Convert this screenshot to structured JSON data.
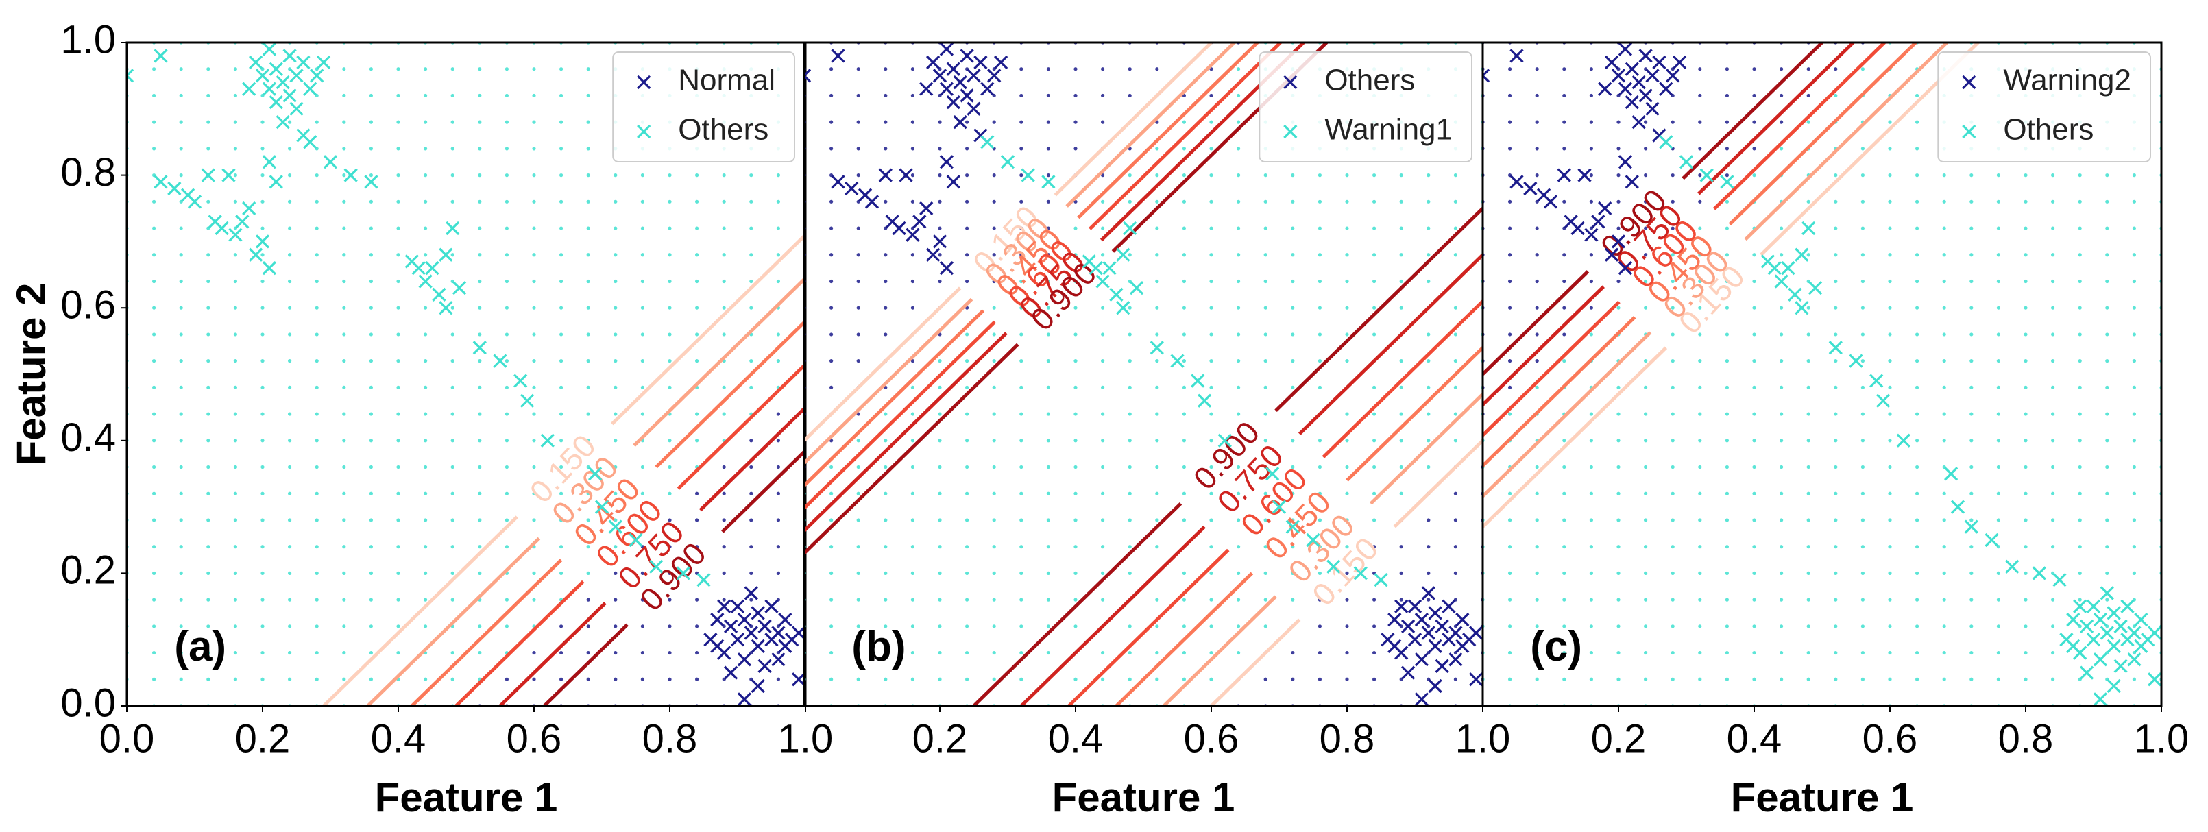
{
  "chart_data": [
    {
      "type": "scatter",
      "panel_label": "(a)",
      "xlabel": "Feature 1",
      "ylabel": "Feature 2",
      "xlim": [
        0,
        1
      ],
      "ylim": [
        0,
        1
      ],
      "xticks": [
        {
          "value": 0,
          "label": "0.0"
        },
        0.2,
        0.4,
        0.6,
        0.8,
        {
          "value": 1,
          "label": "1.0"
        }
      ],
      "yticks": [
        {
          "value": 0,
          "label": "0.0"
        },
        0.2,
        0.4,
        0.6,
        0.8,
        {
          "value": 1,
          "label": "1.0"
        }
      ],
      "legend": "upper right",
      "series": [
        {
          "name": "Normal",
          "color": "#1c1c8c",
          "x": [
            0.86,
            0.87,
            0.88,
            0.89,
            0.9,
            0.9,
            0.91,
            0.91,
            0.92,
            0.92,
            0.93,
            0.93,
            0.94,
            0.94,
            0.95,
            0.95,
            0.96,
            0.97,
            0.97,
            0.98,
            0.99,
            0.88,
            0.89,
            0.91,
            0.99,
            0.93,
            0.87,
            0.96
          ],
          "y": [
            0.1,
            0.13,
            0.08,
            0.12,
            0.15,
            0.1,
            0.07,
            0.13,
            0.11,
            0.17,
            0.09,
            0.14,
            0.12,
            0.06,
            0.1,
            0.15,
            0.11,
            0.09,
            0.13,
            0.1,
            0.11,
            0.15,
            0.05,
            0.01,
            0.04,
            0.03,
            0.09,
            0.07
          ]
        },
        {
          "name": "Others",
          "color": "#40e0d0",
          "x": [
            0.2,
            0.21,
            0.22,
            0.23,
            0.24,
            0.25,
            0.26,
            0.22,
            0.27,
            0.24,
            0.19,
            0.28,
            0.21,
            0.25,
            0.23,
            0.26,
            0.18,
            0.29,
            0.05,
            0.0,
            0.05,
            0.07,
            0.09,
            0.1,
            0.12,
            0.13,
            0.14,
            0.15,
            0.16,
            0.17,
            0.19,
            0.2,
            0.21,
            0.18,
            0.22,
            0.21,
            0.27,
            0.3,
            0.33,
            0.36,
            0.42,
            0.43,
            0.44,
            0.45,
            0.46,
            0.47,
            0.48,
            0.47,
            0.49,
            0.52,
            0.55,
            0.58,
            0.59,
            0.62,
            0.69,
            0.7,
            0.72,
            0.75,
            0.78,
            0.82,
            0.85
          ],
          "y": [
            0.95,
            0.93,
            0.96,
            0.94,
            0.92,
            0.95,
            0.97,
            0.91,
            0.93,
            0.98,
            0.97,
            0.95,
            0.99,
            0.9,
            0.88,
            0.86,
            0.93,
            0.97,
            0.98,
            0.95,
            0.79,
            0.78,
            0.77,
            0.76,
            0.8,
            0.73,
            0.72,
            0.8,
            0.71,
            0.73,
            0.68,
            0.7,
            0.66,
            0.75,
            0.79,
            0.82,
            0.85,
            0.82,
            0.8,
            0.79,
            0.67,
            0.66,
            0.64,
            0.66,
            0.62,
            0.68,
            0.72,
            0.6,
            0.63,
            0.54,
            0.52,
            0.49,
            0.46,
            0.4,
            0.35,
            0.3,
            0.27,
            0.25,
            0.21,
            0.2,
            0.19
          ]
        }
      ],
      "contour_sets": [
        {
          "levels": [
            0.15,
            0.3,
            0.45,
            0.6,
            0.75,
            0.9
          ],
          "level_labels": [
            "0.150",
            "0.300",
            "0.450",
            "0.600",
            "0.750",
            "0.900"
          ],
          "level_colors": [
            "#fdd0bc",
            "#fca486",
            "#fb7858",
            "#f14a36",
            "#d0231f",
            "#a50f15"
          ]
        }
      ]
    },
    {
      "type": "scatter",
      "panel_label": "(b)",
      "xlabel": "Feature 1",
      "xlim": [
        0,
        1
      ],
      "ylim": [
        0,
        1
      ],
      "xticks": [
        0.2,
        0.4,
        0.6,
        0.8,
        {
          "value": 1,
          "label": "1.0"
        }
      ],
      "legend": "upper right",
      "series": [
        {
          "name": "Others",
          "color": "#1c1c8c",
          "x": [
            0.2,
            0.21,
            0.22,
            0.23,
            0.24,
            0.25,
            0.26,
            0.22,
            0.27,
            0.24,
            0.19,
            0.28,
            0.21,
            0.25,
            0.23,
            0.26,
            0.18,
            0.29,
            0.05,
            0.0,
            0.05,
            0.07,
            0.09,
            0.1,
            0.12,
            0.13,
            0.14,
            0.15,
            0.16,
            0.17,
            0.19,
            0.2,
            0.21,
            0.18,
            0.22,
            0.21,
            0.86,
            0.87,
            0.88,
            0.89,
            0.9,
            0.9,
            0.91,
            0.91,
            0.92,
            0.92,
            0.93,
            0.93,
            0.94,
            0.94,
            0.95,
            0.95,
            0.96,
            0.97,
            0.97,
            0.98,
            0.99,
            0.88,
            0.89,
            0.91,
            0.99,
            0.93,
            0.87,
            0.96
          ],
          "y": [
            0.95,
            0.93,
            0.96,
            0.94,
            0.92,
            0.95,
            0.97,
            0.91,
            0.93,
            0.98,
            0.97,
            0.95,
            0.99,
            0.9,
            0.88,
            0.86,
            0.93,
            0.97,
            0.98,
            0.95,
            0.79,
            0.78,
            0.77,
            0.76,
            0.8,
            0.73,
            0.72,
            0.8,
            0.71,
            0.73,
            0.68,
            0.7,
            0.66,
            0.75,
            0.79,
            0.82,
            0.1,
            0.13,
            0.08,
            0.12,
            0.15,
            0.1,
            0.07,
            0.13,
            0.11,
            0.17,
            0.09,
            0.14,
            0.12,
            0.06,
            0.1,
            0.15,
            0.11,
            0.09,
            0.13,
            0.1,
            0.11,
            0.15,
            0.05,
            0.01,
            0.04,
            0.03,
            0.09,
            0.07
          ]
        },
        {
          "name": "Warning1",
          "color": "#40e0d0",
          "x": [
            0.27,
            0.3,
            0.33,
            0.36,
            0.42,
            0.43,
            0.44,
            0.45,
            0.46,
            0.47,
            0.48,
            0.47,
            0.49,
            0.52,
            0.55,
            0.58,
            0.59,
            0.62,
            0.69,
            0.7,
            0.72,
            0.75,
            0.78,
            0.82,
            0.85
          ],
          "y": [
            0.85,
            0.82,
            0.8,
            0.79,
            0.67,
            0.66,
            0.64,
            0.66,
            0.62,
            0.68,
            0.72,
            0.6,
            0.63,
            0.54,
            0.52,
            0.49,
            0.46,
            0.4,
            0.35,
            0.3,
            0.27,
            0.25,
            0.21,
            0.2,
            0.19
          ]
        }
      ],
      "contour_sets": [
        {
          "levels": [
            0.15,
            0.3,
            0.45,
            0.6,
            0.75,
            0.9
          ],
          "level_labels": [
            "0.150",
            "0.300",
            "0.450",
            "0.600",
            "0.750",
            "0.900"
          ],
          "level_colors": [
            "#fdd0bc",
            "#fca486",
            "#fb7858",
            "#f14a36",
            "#d0231f",
            "#a50f15"
          ]
        },
        {
          "levels": [
            0.15,
            0.3,
            0.45,
            0.6,
            0.75,
            0.9
          ],
          "level_labels": [
            "0.150",
            "0.300",
            "0.450",
            "0.600",
            "0.750",
            "0.900"
          ],
          "level_colors": [
            "#fdd0bc",
            "#fca486",
            "#fb7858",
            "#f14a36",
            "#d0231f",
            "#a50f15"
          ]
        }
      ]
    },
    {
      "type": "scatter",
      "panel_label": "(c)",
      "xlabel": "Feature 1",
      "xlim": [
        0,
        1
      ],
      "ylim": [
        0,
        1
      ],
      "xticks": [
        0.2,
        0.4,
        0.6,
        0.8,
        {
          "value": 1,
          "label": "1.0"
        }
      ],
      "legend": "upper right",
      "series": [
        {
          "name": "Warning2",
          "color": "#1c1c8c",
          "x": [
            0.2,
            0.21,
            0.22,
            0.23,
            0.24,
            0.25,
            0.26,
            0.22,
            0.27,
            0.24,
            0.19,
            0.28,
            0.21,
            0.25,
            0.23,
            0.26,
            0.18,
            0.29,
            0.05,
            0.0,
            0.05,
            0.07,
            0.09,
            0.1,
            0.12,
            0.13,
            0.14,
            0.15,
            0.16,
            0.17,
            0.19,
            0.2,
            0.21,
            0.18,
            0.22,
            0.21
          ],
          "y": [
            0.95,
            0.93,
            0.96,
            0.94,
            0.92,
            0.95,
            0.97,
            0.91,
            0.93,
            0.98,
            0.97,
            0.95,
            0.99,
            0.9,
            0.88,
            0.86,
            0.93,
            0.97,
            0.98,
            0.95,
            0.79,
            0.78,
            0.77,
            0.76,
            0.8,
            0.73,
            0.72,
            0.8,
            0.71,
            0.73,
            0.68,
            0.7,
            0.66,
            0.75,
            0.79,
            0.82
          ]
        },
        {
          "name": "Others",
          "color": "#40e0d0",
          "x": [
            0.27,
            0.3,
            0.33,
            0.36,
            0.42,
            0.43,
            0.44,
            0.45,
            0.46,
            0.47,
            0.48,
            0.47,
            0.49,
            0.52,
            0.55,
            0.58,
            0.59,
            0.62,
            0.69,
            0.7,
            0.72,
            0.75,
            0.78,
            0.82,
            0.85,
            0.86,
            0.87,
            0.88,
            0.89,
            0.9,
            0.9,
            0.91,
            0.91,
            0.92,
            0.92,
            0.93,
            0.93,
            0.94,
            0.94,
            0.95,
            0.95,
            0.96,
            0.97,
            0.97,
            0.98,
            0.99,
            0.88,
            0.89,
            0.91,
            0.99,
            0.93,
            0.87,
            0.96
          ],
          "y": [
            0.85,
            0.82,
            0.8,
            0.79,
            0.67,
            0.66,
            0.64,
            0.66,
            0.62,
            0.68,
            0.72,
            0.6,
            0.63,
            0.54,
            0.52,
            0.49,
            0.46,
            0.4,
            0.35,
            0.3,
            0.27,
            0.25,
            0.21,
            0.2,
            0.19,
            0.1,
            0.13,
            0.08,
            0.12,
            0.15,
            0.1,
            0.07,
            0.13,
            0.11,
            0.17,
            0.09,
            0.14,
            0.12,
            0.06,
            0.1,
            0.15,
            0.11,
            0.09,
            0.13,
            0.1,
            0.11,
            0.15,
            0.05,
            0.01,
            0.04,
            0.03,
            0.09,
            0.07
          ]
        }
      ],
      "contour_sets": [
        {
          "levels": [
            0.15,
            0.3,
            0.45,
            0.6,
            0.75,
            0.9
          ],
          "level_labels": [
            "0.150",
            "0.300",
            "0.450",
            "0.600",
            "0.750",
            "0.900"
          ],
          "level_colors": [
            "#fdd0bc",
            "#fca486",
            "#fb7858",
            "#f14a36",
            "#d0231f",
            "#a50f15"
          ]
        }
      ]
    }
  ]
}
